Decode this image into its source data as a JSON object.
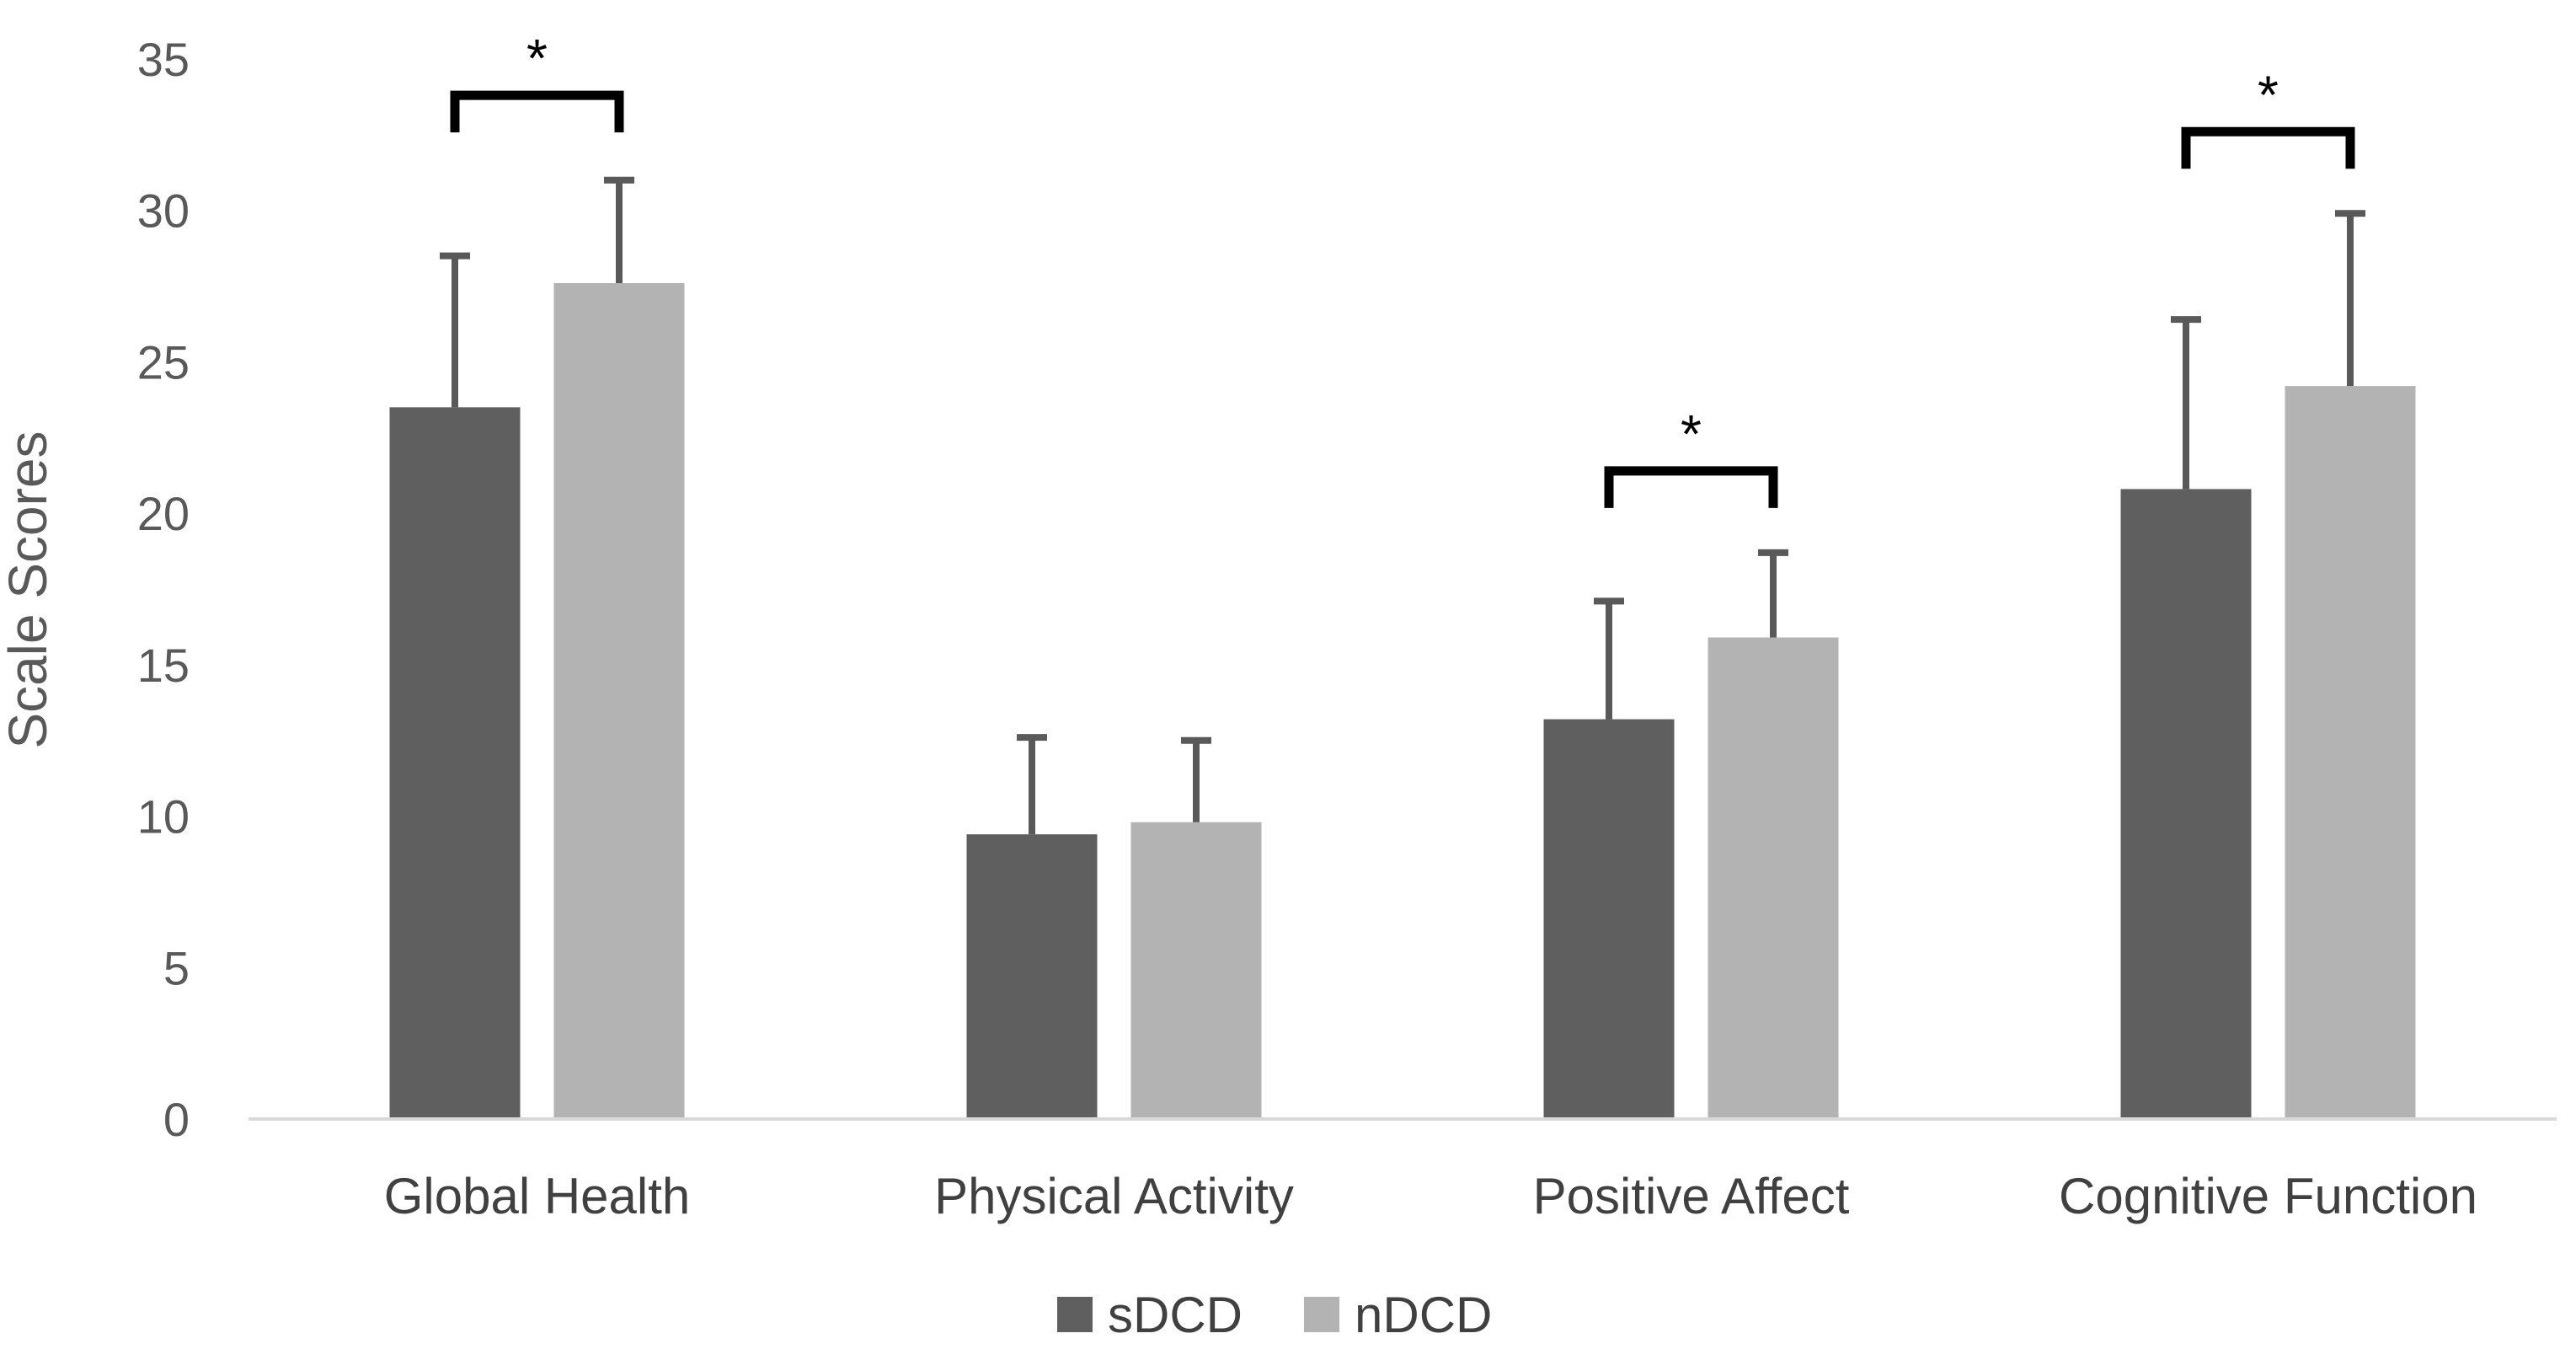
{
  "chart_data": {
    "type": "bar",
    "title": "",
    "xlabel": "",
    "ylabel": "Scale Scores",
    "ylim": [
      0,
      35
    ],
    "yticks": [
      0,
      5,
      10,
      15,
      20,
      25,
      30,
      35
    ],
    "grid": false,
    "legend_position": "bottom",
    "categories": [
      "Global Health",
      "Physical Activity",
      "Positive Affect",
      "Cognitive Function"
    ],
    "series": [
      {
        "name": "sDCD",
        "color": "#5f5f5f",
        "values": [
          23.5,
          9.4,
          13.2,
          20.8
        ],
        "error_upper": [
          28.5,
          12.6,
          17.1,
          26.4
        ]
      },
      {
        "name": "nDCD",
        "color": "#b3b3b3",
        "values": [
          27.6,
          9.8,
          15.9,
          24.2
        ],
        "error_upper": [
          31.0,
          12.5,
          18.7,
          29.9
        ]
      }
    ],
    "significance": [
      {
        "category": "Global Health",
        "label": "*",
        "bracket_y": 33.8
      },
      {
        "category": "Positive Affect",
        "label": "*",
        "bracket_y": 21.4
      },
      {
        "category": "Cognitive Function",
        "label": "*",
        "bracket_y": 32.6
      }
    ],
    "axis_color": "#d9d9d9",
    "errorbar_color": "#595959"
  }
}
